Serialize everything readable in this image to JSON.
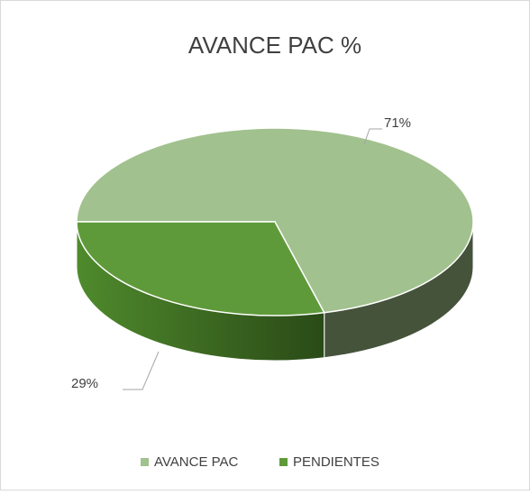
{
  "chart_data": {
    "type": "pie3d",
    "title": "AVANCE PAC %",
    "categories": [
      "AVANCE PAC",
      "PENDIENTES"
    ],
    "values": [
      71,
      29
    ],
    "value_labels": [
      "71%",
      "29%"
    ],
    "colors": [
      "#a1c18e",
      "#5f9a3a"
    ],
    "legend": "bottom"
  }
}
